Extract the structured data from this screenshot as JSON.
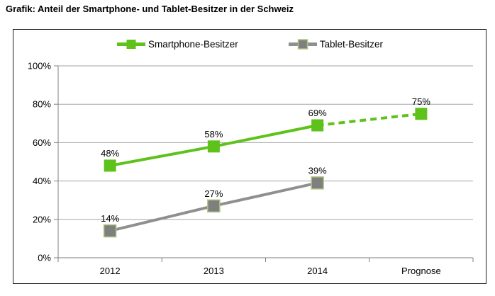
{
  "title": "Grafik: Anteil der Smartphone- und Tablet-Besitzer in der Schweiz",
  "colors": {
    "background": "#FFFFFF",
    "frame_border": "#1F1F1F",
    "grid": "#A6A6A6",
    "axis": "#7F7F7F",
    "text": "#000000",
    "smartphone_green": "#5EC21A",
    "tablet_gray": "#8F8F8F",
    "tablet_marker_fill": "#7F7F7F",
    "tablet_marker_border": "#ACC57E"
  },
  "chart_data": {
    "type": "line",
    "title": "Grafik: Anteil der Smartphone- und Tablet-Besitzer in der Schweiz",
    "categories": [
      "2012",
      "2013",
      "2014",
      "Prognose"
    ],
    "series": [
      {
        "name": "Smartphone-Besitzer",
        "values": [
          48,
          58,
          69,
          75
        ],
        "labels": [
          "48%",
          "58%",
          "69%",
          "75%"
        ],
        "color": "#5EC21A",
        "marker": "square",
        "marker_fill": "#5EC21A",
        "marker_border": null,
        "dashed_from_index": 2
      },
      {
        "name": "Tablet-Besitzer",
        "values": [
          14,
          27,
          39,
          null
        ],
        "labels": [
          "14%",
          "27%",
          "39%",
          null
        ],
        "color": "#8F8F8F",
        "marker": "square",
        "marker_fill": "#7F7F7F",
        "marker_border": "#ACC57E",
        "dashed_from_index": null
      }
    ],
    "xlabel": "",
    "ylabel": "",
    "ylim": [
      0,
      100
    ],
    "ytick_step": 20,
    "ytick_labels": [
      "0%",
      "20%",
      "40%",
      "60%",
      "80%",
      "100%"
    ],
    "grid": true,
    "legend_position": "top"
  }
}
